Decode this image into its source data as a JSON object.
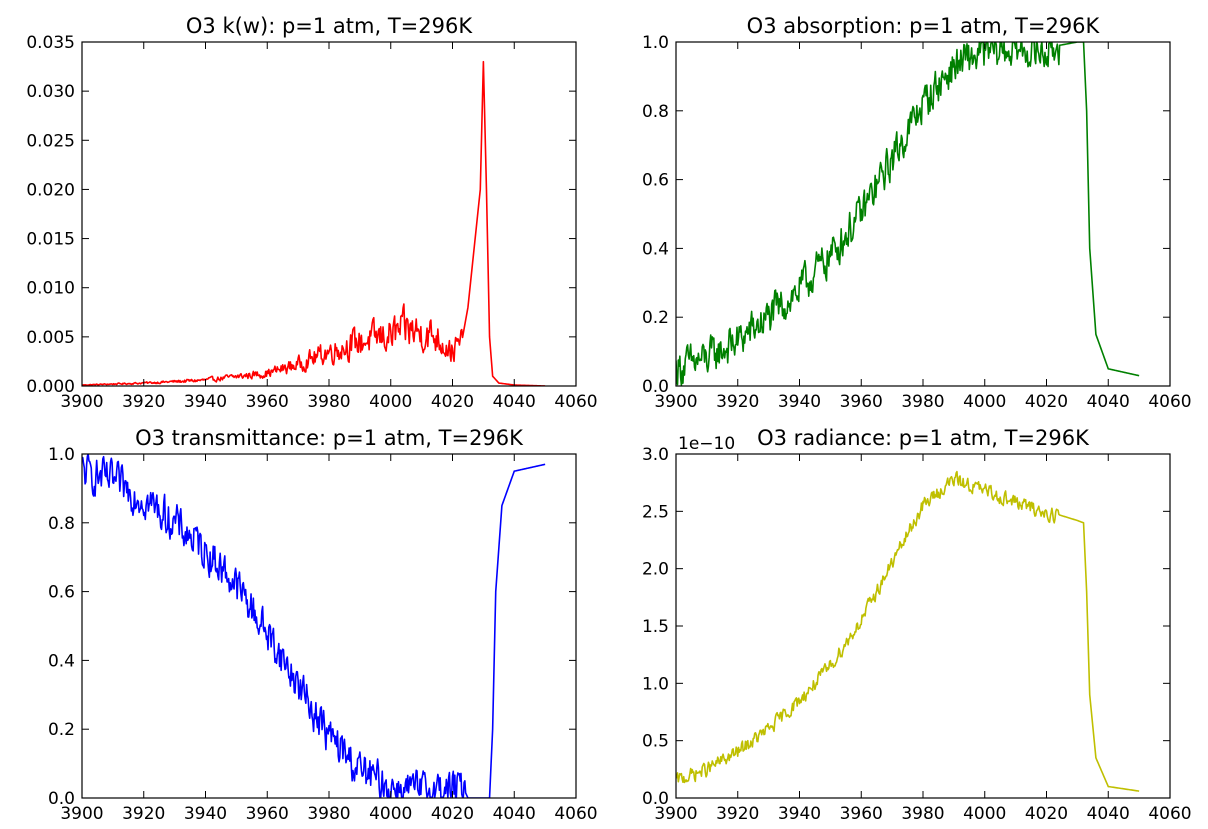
{
  "chart_data": [
    {
      "type": "line",
      "title": "O3 k(w): p=1 atm, T=296K",
      "color": "#ff0000",
      "xlim": [
        3900,
        4060
      ],
      "ylim": [
        0,
        0.035
      ],
      "xticks": [
        "3900",
        "3920",
        "3940",
        "3960",
        "3980",
        "4000",
        "4020",
        "4040",
        "4060"
      ],
      "yticks": [
        "0.000",
        "0.005",
        "0.010",
        "0.015",
        "0.020",
        "0.025",
        "0.030",
        "0.035"
      ],
      "series": [
        {
          "x": [
            3900,
            3920,
            3940,
            3960,
            3970,
            3980,
            3990,
            4000,
            4005,
            4010,
            4015,
            4020,
            4023,
            4025,
            4027,
            4029,
            4030,
            4031,
            4032,
            4033,
            4035,
            4040,
            4050
          ],
          "y": [
            0.0001,
            0.0003,
            0.0006,
            0.0013,
            0.0022,
            0.0035,
            0.0045,
            0.0052,
            0.0058,
            0.0054,
            0.005,
            0.0035,
            0.0045,
            0.008,
            0.014,
            0.02,
            0.033,
            0.02,
            0.005,
            0.001,
            0.0003,
            0.0001,
            0.0
          ],
          "noise": 0.5,
          "noise_until": 4023
        }
      ]
    },
    {
      "type": "line",
      "title": "O3 absorption: p=1 atm, T=296K",
      "color": "#008000",
      "xlim": [
        3900,
        4060
      ],
      "ylim": [
        0,
        1
      ],
      "xticks": [
        "3900",
        "3920",
        "3940",
        "3960",
        "3980",
        "4000",
        "4020",
        "4040",
        "4060"
      ],
      "yticks": [
        "0.0",
        "0.2",
        "0.4",
        "0.6",
        "0.8",
        "1.0"
      ],
      "series": [
        {
          "x": [
            3900,
            3910,
            3920,
            3930,
            3940,
            3950,
            3960,
            3970,
            3980,
            3990,
            4000,
            4010,
            4020,
            4024,
            4030,
            4032,
            4033,
            4034,
            4036,
            4040,
            4050
          ],
          "y": [
            0.05,
            0.08,
            0.13,
            0.2,
            0.28,
            0.38,
            0.5,
            0.66,
            0.82,
            0.93,
            0.97,
            0.98,
            0.97,
            0.99,
            1.0,
            1.0,
            0.8,
            0.4,
            0.15,
            0.05,
            0.03
          ],
          "noise": 0.08,
          "noise_until": 4024
        }
      ]
    },
    {
      "type": "line",
      "title": "O3 transmittance: p=1 atm, T=296K",
      "color": "#0000ff",
      "xlim": [
        3900,
        4060
      ],
      "ylim": [
        0,
        1
      ],
      "xticks": [
        "3900",
        "3920",
        "3940",
        "3960",
        "3980",
        "4000",
        "4020",
        "4040",
        "4060"
      ],
      "yticks": [
        "0.0",
        "0.2",
        "0.4",
        "0.6",
        "0.8",
        "1.0"
      ],
      "series": [
        {
          "x": [
            3900,
            3910,
            3920,
            3930,
            3940,
            3950,
            3960,
            3970,
            3980,
            3990,
            4000,
            4010,
            4020,
            4024,
            4025,
            4030,
            4032,
            4033,
            4034,
            4036,
            4040,
            4050
          ],
          "y": [
            0.95,
            0.92,
            0.87,
            0.8,
            0.72,
            0.62,
            0.48,
            0.33,
            0.18,
            0.08,
            0.03,
            0.02,
            0.03,
            0.02,
            0.0,
            0.0,
            0.0,
            0.2,
            0.6,
            0.85,
            0.95,
            0.97
          ],
          "noise": 0.08,
          "noise_until": 4024
        }
      ]
    },
    {
      "type": "line",
      "title": "O3 radiance: p=1 atm, T=296K",
      "color": "#bfbf00",
      "xlim": [
        3900,
        4060
      ],
      "ylim": [
        0,
        3.0
      ],
      "xticks": [
        "3900",
        "3920",
        "3940",
        "3960",
        "3980",
        "4000",
        "4020",
        "4040",
        "4060"
      ],
      "yticks": [
        "0.0",
        "0.5",
        "1.0",
        "1.5",
        "2.0",
        "2.5",
        "3.0"
      ],
      "offset_label": "1e−10",
      "series": [
        {
          "x": [
            3900,
            3910,
            3920,
            3930,
            3940,
            3950,
            3960,
            3970,
            3980,
            3990,
            4000,
            4010,
            4020,
            4024,
            4030,
            4032,
            4033,
            4034,
            4036,
            4040,
            4050
          ],
          "y": [
            0.15,
            0.25,
            0.4,
            0.6,
            0.85,
            1.15,
            1.55,
            2.05,
            2.55,
            2.78,
            2.68,
            2.58,
            2.48,
            2.47,
            2.42,
            2.4,
            1.8,
            0.9,
            0.35,
            0.1,
            0.06
          ],
          "noise": 0.09,
          "noise_until": 4024
        }
      ]
    }
  ]
}
